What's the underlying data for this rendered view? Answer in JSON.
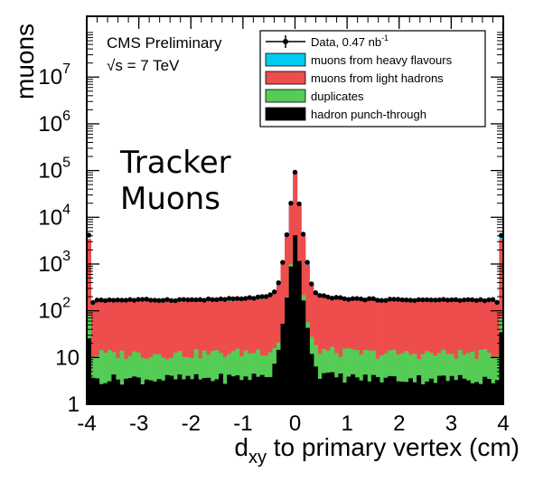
{
  "chart_data": {
    "type": "bar",
    "style": "stacked histogram with data points",
    "ylabel": "muons",
    "xlabel_main": "d",
    "xlabel_sub": "xy",
    "xlabel_rest": " to primary vertex (cm)",
    "experiment_label": "CMS Preliminary",
    "energy_label_sqrt": "√s",
    "energy_label_rest": " = 7 TeV",
    "panel_title_line1": "Tracker",
    "panel_title_line2": "Muons",
    "xlim": [
      -4,
      4
    ],
    "ylim": [
      1,
      200000000
    ],
    "y_scale": "log",
    "x_ticks": [
      "-4",
      "-3",
      "-2",
      "-1",
      "0",
      "1",
      "2",
      "3",
      "4"
    ],
    "y_ticks": [
      {
        "base": "1",
        "exp": ""
      },
      {
        "base": "10",
        "exp": ""
      },
      {
        "base": "10",
        "exp": "2"
      },
      {
        "base": "10",
        "exp": "3"
      },
      {
        "base": "10",
        "exp": "4"
      },
      {
        "base": "10",
        "exp": "5"
      },
      {
        "base": "10",
        "exp": "6"
      },
      {
        "base": "10",
        "exp": "7"
      }
    ],
    "legend_position": "top-right",
    "legend": [
      {
        "label": "Data, 0.47 nb",
        "sup": "-1",
        "marker": "point",
        "color": "#000000"
      },
      {
        "label": "muons from heavy flavours",
        "marker": "box",
        "color": "#00ccee"
      },
      {
        "label": "muons from light hadrons",
        "marker": "box",
        "color": "#ee4d4d"
      },
      {
        "label": "duplicates",
        "marker": "box",
        "color": "#55cc55"
      },
      {
        "label": "hadron punch-through",
        "marker": "box",
        "color": "#000000"
      }
    ],
    "series": [
      {
        "name": "hadron punch-through",
        "color": "#000000",
        "profile": {
          "edge": 30,
          "plateau": 3.5,
          "core_peak": 5000,
          "core_width": 0.05,
          "halo": 0.5
        }
      },
      {
        "name": "duplicates",
        "color": "#55cc55",
        "profile": {
          "edge": 90,
          "plateau": 12,
          "core_peak": 4500,
          "core_width": 0.05,
          "halo": 0.5
        }
      },
      {
        "name": "muons from light hadrons",
        "color": "#ee4d4d",
        "profile": {
          "edge": 3500,
          "plateau": 160,
          "core_peak": 90000,
          "core_width": 0.05,
          "halo": 0.5
        }
      },
      {
        "name": "muons from heavy flavours",
        "color": "#00ccee",
        "profile": {
          "edge": 3600,
          "plateau": 165,
          "core_peak": 91000,
          "core_width": 0.05,
          "halo": 0.5
        }
      }
    ],
    "data_points_profile": {
      "edge": 4000,
      "plateau": 170,
      "core_peak": 95000,
      "core_width": 0.05,
      "halo": 0.5
    },
    "bins": {
      "count": 101,
      "min": -4,
      "max": 4
    },
    "frame_color": "#000000"
  }
}
